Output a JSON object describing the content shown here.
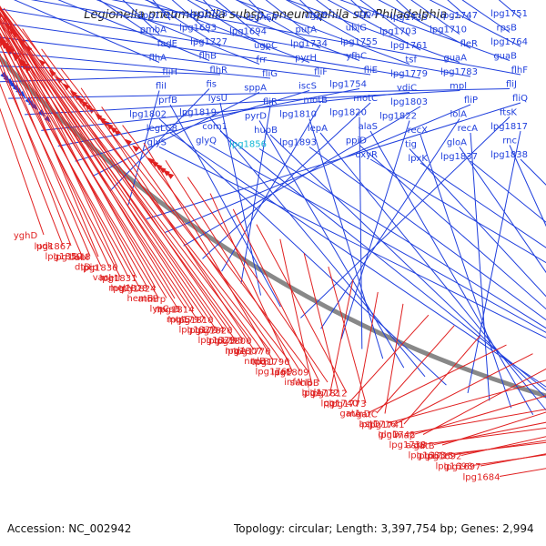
{
  "title": "Legionella pneumophila subsp. pneumophila str. Philadelphia ...",
  "accession": "Accession: NC_002942",
  "summary": "Topology: circular; Length: 3,397,754 bp; Genes: 2,994",
  "colors": {
    "forward": "#1f3fdd",
    "reverse": "#e02020",
    "highlight": "#11b7d6",
    "backbone": "#888888"
  },
  "scale_ticks": [
    "2150 kbp",
    "2100 kbp",
    "2050 kbp",
    "2000 kbp",
    "1950 kbp",
    "1900 kbp"
  ],
  "forward_genes": [
    "lpg1751",
    "lpg1747",
    "lpg1733",
    "ugpA",
    "ugpE",
    "legAS4",
    "lpg1728",
    "lpg1717",
    "rpsB",
    "lpg1710",
    "lpg1703",
    "ubiG",
    "putA",
    "lpg1694",
    "lpg1693",
    "pmbA",
    "lpg1764",
    "fleR",
    "lpg1761",
    "lpg1755",
    "lpg1734",
    "ugpC",
    "lpg1727",
    "fadE",
    "guaB",
    "guaA",
    "tsf",
    "yfhC",
    "pyrH",
    "frr",
    "flhB",
    "flhA",
    "flhF",
    "lpg1783",
    "lpg1779",
    "fliE",
    "fliF",
    "fliG",
    "flhR",
    "fliH",
    "fliJ",
    "mpl",
    "vdiC",
    "lpg1754",
    "iscS",
    "sppA",
    "fis",
    "fliI",
    "fliQ",
    "fliP",
    "lpg1803",
    "motC",
    "motB",
    "fliR",
    "lysU",
    "prfB",
    "ftsK",
    "lolA",
    "lpg1822",
    "lpg1820",
    "lpg1810",
    "pyrD",
    "lpg1819",
    "lpg1802",
    "lpg1817",
    "recA",
    "recX",
    "alaS",
    "lepA",
    "hupB",
    "com1",
    "legLC8",
    "rnc",
    "gloA",
    "tig",
    "ppiD",
    "lpg1893",
    "lpg1856",
    "glyQ",
    "glyS",
    "lpg1838",
    "lpg1837",
    "lpxK",
    "oxyR"
  ],
  "reverse_genes": [
    "yghD",
    "lpg1867",
    "fabI",
    "udk",
    "lpg1848",
    "lpg1836",
    "lpg1850",
    "pip",
    "lpg1831",
    "dtD",
    "metI",
    "lpg1824",
    "vacJ",
    "lpg1828",
    "mrp",
    "metN",
    "atoB",
    "lpg1814",
    "hemB",
    "mvaB",
    "lpg1816",
    "lysC",
    "lpg1797",
    "lpg1826",
    "mutS",
    "lpg1794",
    "lpg1806",
    "lpg1827",
    "lpg1795",
    "lpg1776",
    "lpg1829",
    "lpg1807",
    "lpg1796",
    "nrdA",
    "trxB1",
    "lpg1809",
    "nrdB",
    "aat",
    "clpB",
    "lpg1769",
    "suhB",
    "lpg1812",
    "infA",
    "lpg1772",
    "lpg1773",
    "gidA",
    "lpg1740",
    "gatC",
    "qor",
    "minD",
    "lpg1741",
    "gatA",
    "lpg1716",
    "map",
    "astD",
    "lpg1742",
    "gatB",
    "glnD",
    "astB",
    "lpg1692",
    "lpg1738",
    "lpg1715",
    "lpg1697",
    "lpg1683",
    "lpg1698",
    "lpg1684"
  ]
}
